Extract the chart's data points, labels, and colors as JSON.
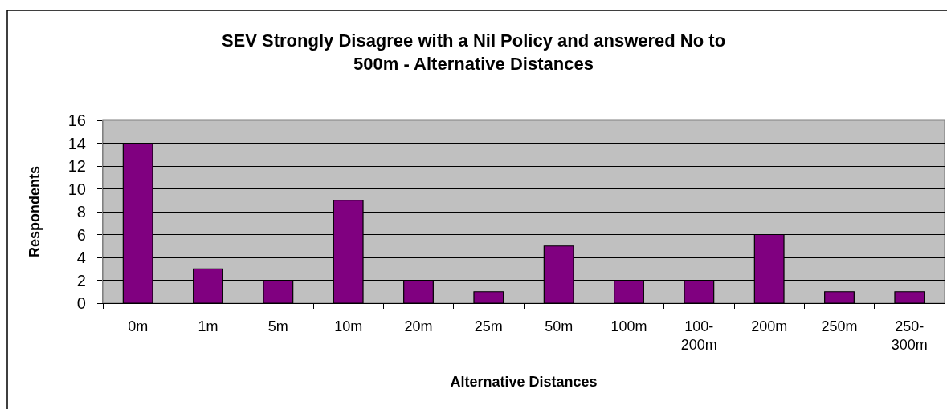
{
  "chart_data": {
    "type": "bar",
    "title": "SEV Strongly Disagree with a Nil Policy and answered No to 500m - Alternative Distances",
    "xlabel": "Alternative Distances",
    "ylabel": "Respondents",
    "categories": [
      "0m",
      "1m",
      "5m",
      "10m",
      "20m",
      "25m",
      "50m",
      "100m",
      "100-200m",
      "200m",
      "250m",
      "250-300m"
    ],
    "values": [
      14,
      3,
      2,
      9,
      2,
      1,
      5,
      2,
      2,
      6,
      1,
      1
    ],
    "color": "#800080",
    "ylim": [
      0,
      16
    ],
    "yticks": [
      0,
      2,
      4,
      6,
      8,
      10,
      12,
      14,
      16
    ],
    "grid": "y"
  }
}
